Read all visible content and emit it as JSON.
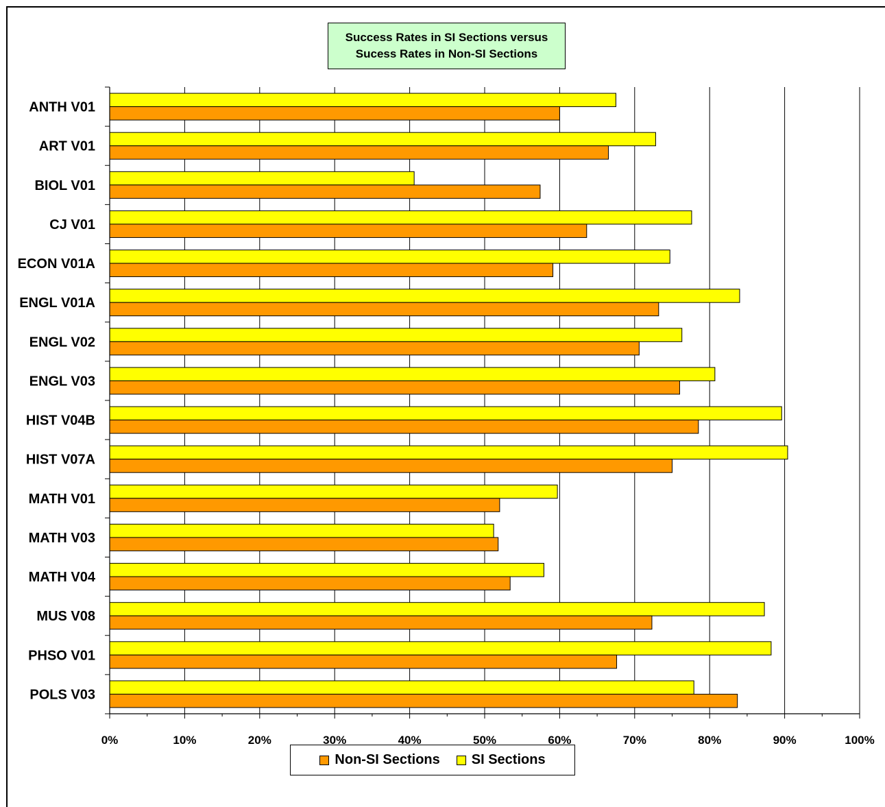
{
  "chart_data": {
    "type": "bar",
    "orientation": "horizontal",
    "title_lines": [
      "Success Rates in SI Sections versus",
      "Sucess Rates in Non-SI Sections"
    ],
    "xlabel": "",
    "ylabel": "",
    "xlim": [
      0,
      100
    ],
    "x_ticks": [
      "0%",
      "10%",
      "20%",
      "30%",
      "40%",
      "50%",
      "60%",
      "70%",
      "80%",
      "90%",
      "100%"
    ],
    "grid": "vertical major gridlines",
    "legend_position": "bottom",
    "categories": [
      "ANTH V01",
      "ART V01",
      "BIOL V01",
      "CJ V01",
      "ECON V01A",
      "ENGL V01A",
      "ENGL V02",
      "ENGL V03",
      "HIST V04B",
      "HIST V07A",
      "MATH V01",
      "MATH V03",
      "MATH V04",
      "MUS V08",
      "PHSO V01",
      "POLS V03"
    ],
    "series": [
      {
        "name": "Non-SI Sections",
        "color": "#ff9900",
        "values": [
          60,
          66.5,
          57.4,
          63.6,
          59.1,
          73.2,
          70.6,
          76,
          78.5,
          75,
          52,
          51.8,
          53.4,
          72.3,
          67.6,
          83.7
        ]
      },
      {
        "name": "SI Sections",
        "color": "#ffff00",
        "values": [
          67.5,
          72.8,
          40.6,
          77.6,
          74.7,
          84,
          76.3,
          80.7,
          89.6,
          90.4,
          59.7,
          51.2,
          57.9,
          87.3,
          88.2,
          77.9
        ]
      }
    ]
  },
  "legend": {
    "items": [
      {
        "label": "Non-SI Sections",
        "color": "#ff9900"
      },
      {
        "label": "SI Sections",
        "color": "#ffff00"
      }
    ]
  }
}
